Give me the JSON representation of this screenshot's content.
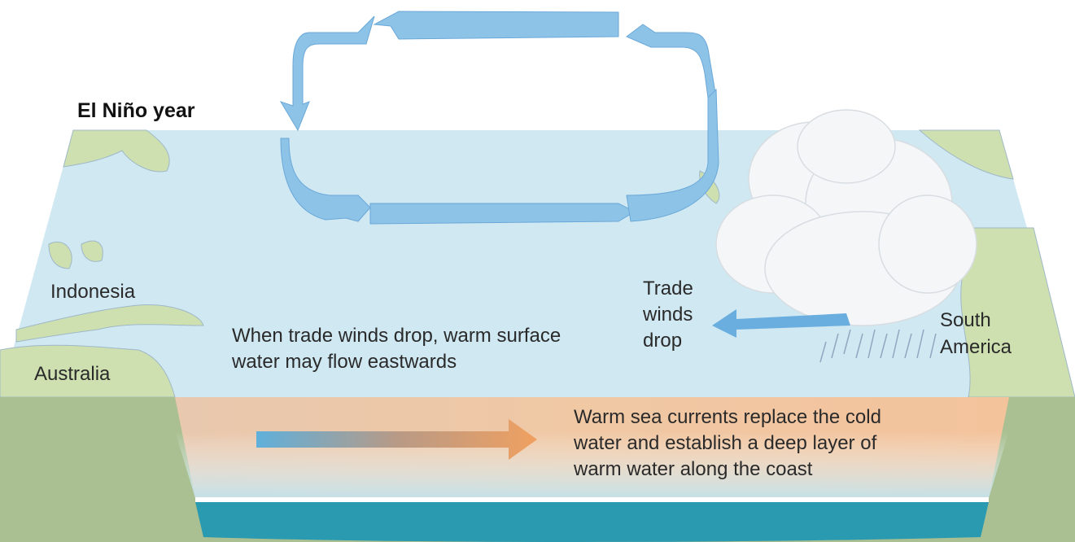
{
  "title": "El Niño year",
  "places": {
    "indonesia": "Indonesia",
    "australia": "Australia",
    "south_america": [
      "South",
      "America"
    ]
  },
  "annotations": {
    "trade_winds": [
      "Trade",
      "winds",
      "drop"
    ],
    "surface_flow": [
      "When trade winds drop, warm surface",
      "water may flow eastwards"
    ],
    "deep_currents": [
      "Warm sea currents replace the cold",
      "water and establish a deep layer of",
      "warm water along the coast"
    ]
  }
}
